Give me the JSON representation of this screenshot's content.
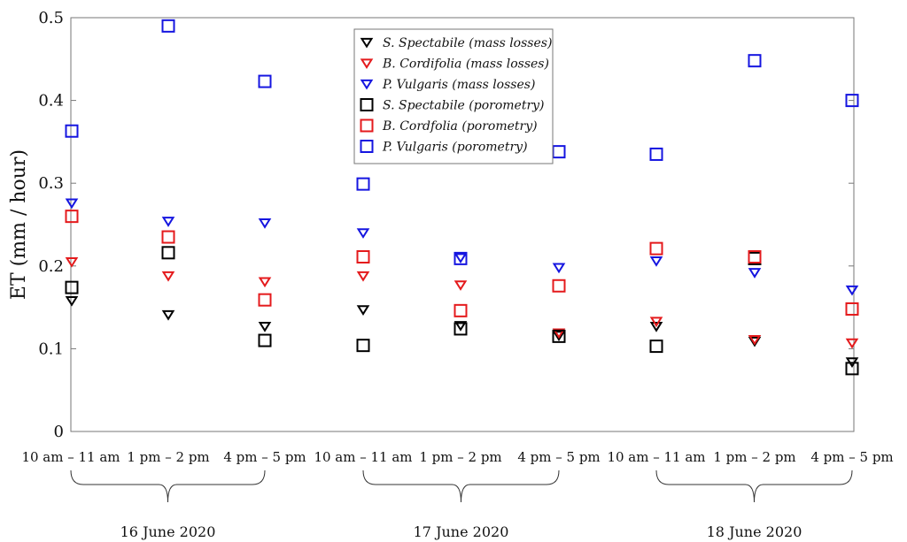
{
  "chart_data": {
    "type": "scatter",
    "ylabel": "ET (mm / hour)",
    "ylim": [
      0,
      0.5
    ],
    "yticks": [
      0,
      0.1,
      0.2,
      0.3,
      0.4,
      0.5
    ],
    "ytick_labels": [
      "0",
      "0.1",
      "0.2",
      "0.3",
      "0.4",
      "0.5"
    ],
    "categories": [
      "10 am – 11 am",
      "1 pm – 2 pm",
      "4 pm – 5 pm",
      "10 am – 11 am",
      "1 pm – 2 pm",
      "4 pm – 5 pm",
      "10 am – 11 am",
      "1 pm – 2 pm",
      "4 pm – 5 pm"
    ],
    "groups": [
      {
        "label": "16 June 2020",
        "from": 0,
        "to": 2
      },
      {
        "label": "17 June 2020",
        "from": 3,
        "to": 5
      },
      {
        "label": "18 June 2020",
        "from": 6,
        "to": 8
      }
    ],
    "grid": false,
    "legend_position": "top-center",
    "series": [
      {
        "name": "S. Spectabile (mass losses)",
        "marker": "triangle-down",
        "color": "#000000",
        "values": [
          0.158,
          0.141,
          0.127,
          0.147,
          0.128,
          0.116,
          0.127,
          0.109,
          0.084
        ]
      },
      {
        "name": "B. Cordifolia (mass losses)",
        "marker": "triangle-down",
        "color": "#e41a1c",
        "values": [
          0.205,
          0.188,
          0.181,
          0.188,
          0.177,
          0.119,
          0.133,
          0.111,
          0.107
        ]
      },
      {
        "name": "P. Vulgaris (mass losses)",
        "marker": "triangle-down",
        "color": "#1515e0",
        "values": [
          0.276,
          0.254,
          0.252,
          0.24,
          0.21,
          0.198,
          0.206,
          0.192,
          0.171
        ]
      },
      {
        "name": "S. Spectabile (porometry)",
        "marker": "square",
        "color": "#000000",
        "values": [
          0.174,
          0.216,
          0.11,
          0.104,
          0.124,
          0.115,
          0.103,
          0.209,
          0.076
        ]
      },
      {
        "name": "B. Cordfolia (porometry)",
        "marker": "square",
        "color": "#e41a1c",
        "values": [
          0.26,
          0.235,
          0.159,
          0.211,
          0.146,
          0.176,
          0.221,
          0.211,
          0.148
        ]
      },
      {
        "name": "P. Vulgaris (porometry)",
        "marker": "square",
        "color": "#1515e0",
        "values": [
          0.363,
          0.49,
          0.423,
          0.299,
          0.209,
          0.338,
          0.335,
          0.448,
          0.4
        ]
      }
    ]
  }
}
